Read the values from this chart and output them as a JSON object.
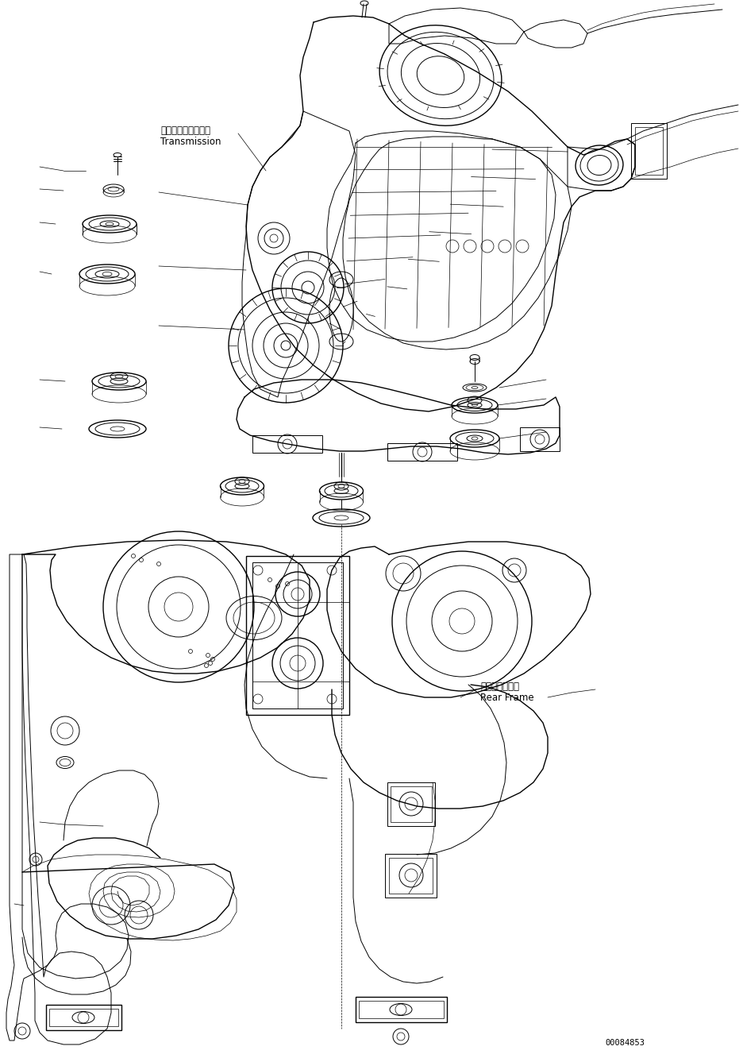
{
  "background_color": "#ffffff",
  "line_color": "#000000",
  "text_color": "#000000",
  "label_transmission_jp": "トランスミッション",
  "label_transmission_en": "Transmission",
  "label_rear_frame_jp": "リヤーフレーム",
  "label_rear_frame_en": "Rear Frame",
  "part_number": "00084853",
  "fig_width": 9.37,
  "fig_height": 13.27,
  "dpi": 100
}
